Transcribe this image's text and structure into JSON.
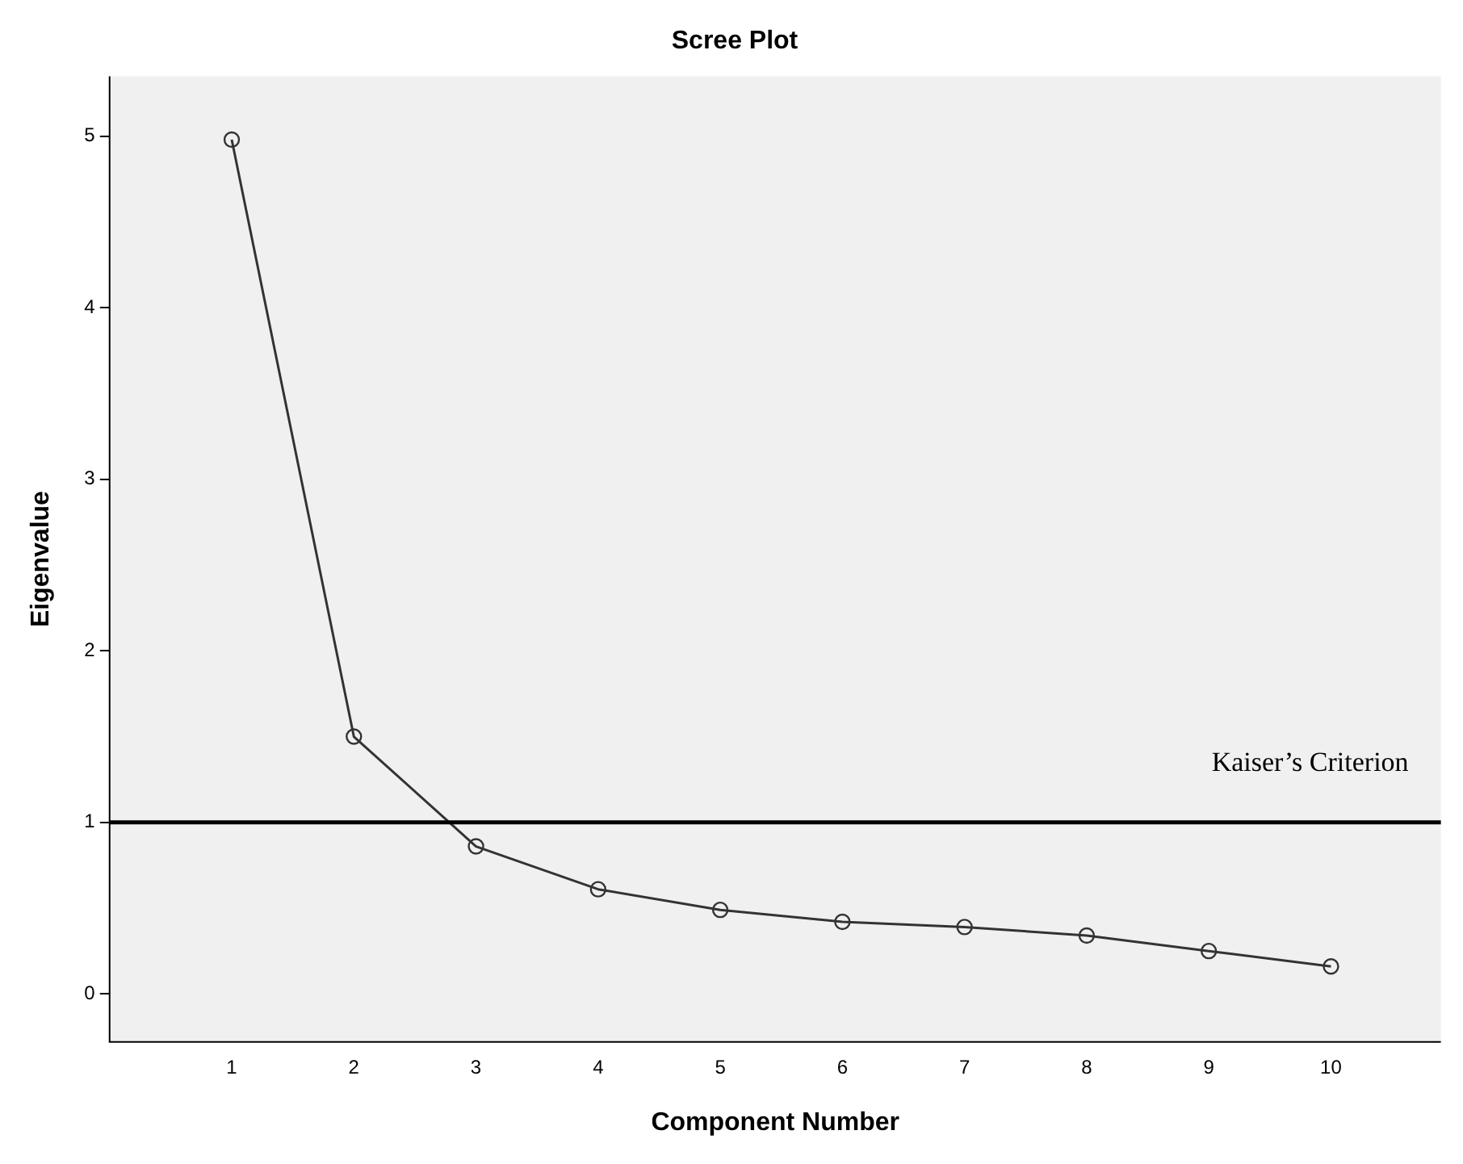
{
  "chart_data": {
    "type": "line",
    "title": "Scree Plot",
    "xlabel": "Component Number",
    "ylabel": "Eigenvalue",
    "x": [
      1,
      2,
      3,
      4,
      5,
      6,
      7,
      8,
      9,
      10
    ],
    "series": [
      {
        "color": "#333333",
        "values": [
          4.98,
          1.5,
          0.86,
          0.61,
          0.49,
          0.42,
          0.39,
          0.34,
          0.25,
          0.16
        ]
      }
    ],
    "xlim": [
      0,
      10.9
    ],
    "xticks": [
      1,
      2,
      3,
      4,
      5,
      6,
      7,
      8,
      9,
      10
    ],
    "ylim": [
      -0.28,
      5.35
    ],
    "yticks": [
      0,
      1,
      2,
      3,
      4,
      5
    ],
    "ref_lines": [
      {
        "axis": "y",
        "value": 1,
        "label": "Kaiser’s Criterion",
        "color": "#000000"
      }
    ],
    "grid": false,
    "legend": false,
    "marker": "circle",
    "line_style": "solid"
  }
}
